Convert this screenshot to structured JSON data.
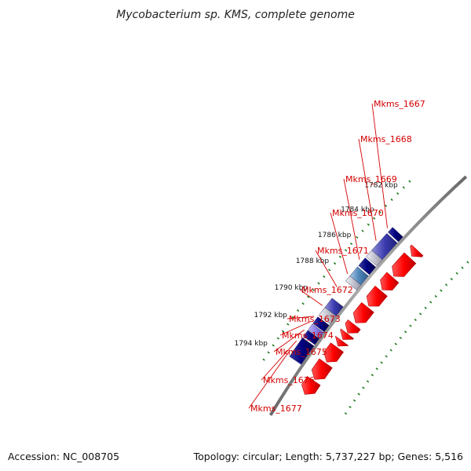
{
  "title": "Mycobacterium sp. KMS, complete genome",
  "accession": "Accession: NC_008705",
  "topology": "Topology: circular; Length: 5,737,227 bp; Genes: 5,516",
  "kbp_labels": [
    {
      "text": "1782 kbp",
      "kbp": 1782
    },
    {
      "text": "1784 kbp",
      "kbp": 1784
    },
    {
      "text": "1786 kbp",
      "kbp": 1786
    },
    {
      "text": "1788 kbp",
      "kbp": 1788
    },
    {
      "text": "1790 kbp",
      "kbp": 1790
    },
    {
      "text": "1792 kbp",
      "kbp": 1792
    },
    {
      "text": "1794 kbp",
      "kbp": 1794
    }
  ],
  "gene_labels": [
    {
      "name": "Mkms_1667"
    },
    {
      "name": "Mkms_1668"
    },
    {
      "name": "Mkms_1669"
    },
    {
      "name": "Mkms_1670"
    },
    {
      "name": "Mkms_1671"
    },
    {
      "name": "Mkms_1672"
    },
    {
      "name": "Mkms_1673"
    },
    {
      "name": "Mkms_1674"
    },
    {
      "name": "Mkms_1675"
    },
    {
      "name": "Mkms_1676"
    },
    {
      "name": "Mkms_1677"
    }
  ],
  "colors": {
    "backbone": "#888888",
    "cds": "#ff0000",
    "feature_dark": "#000080",
    "feature_mid": "#4a4aa8",
    "feature_light": "#8a7ee6",
    "feature_steel": "#4f86b8",
    "feature_gray": "#b8b8c4",
    "tick": "#1f7a1f",
    "label": "#d40000"
  }
}
